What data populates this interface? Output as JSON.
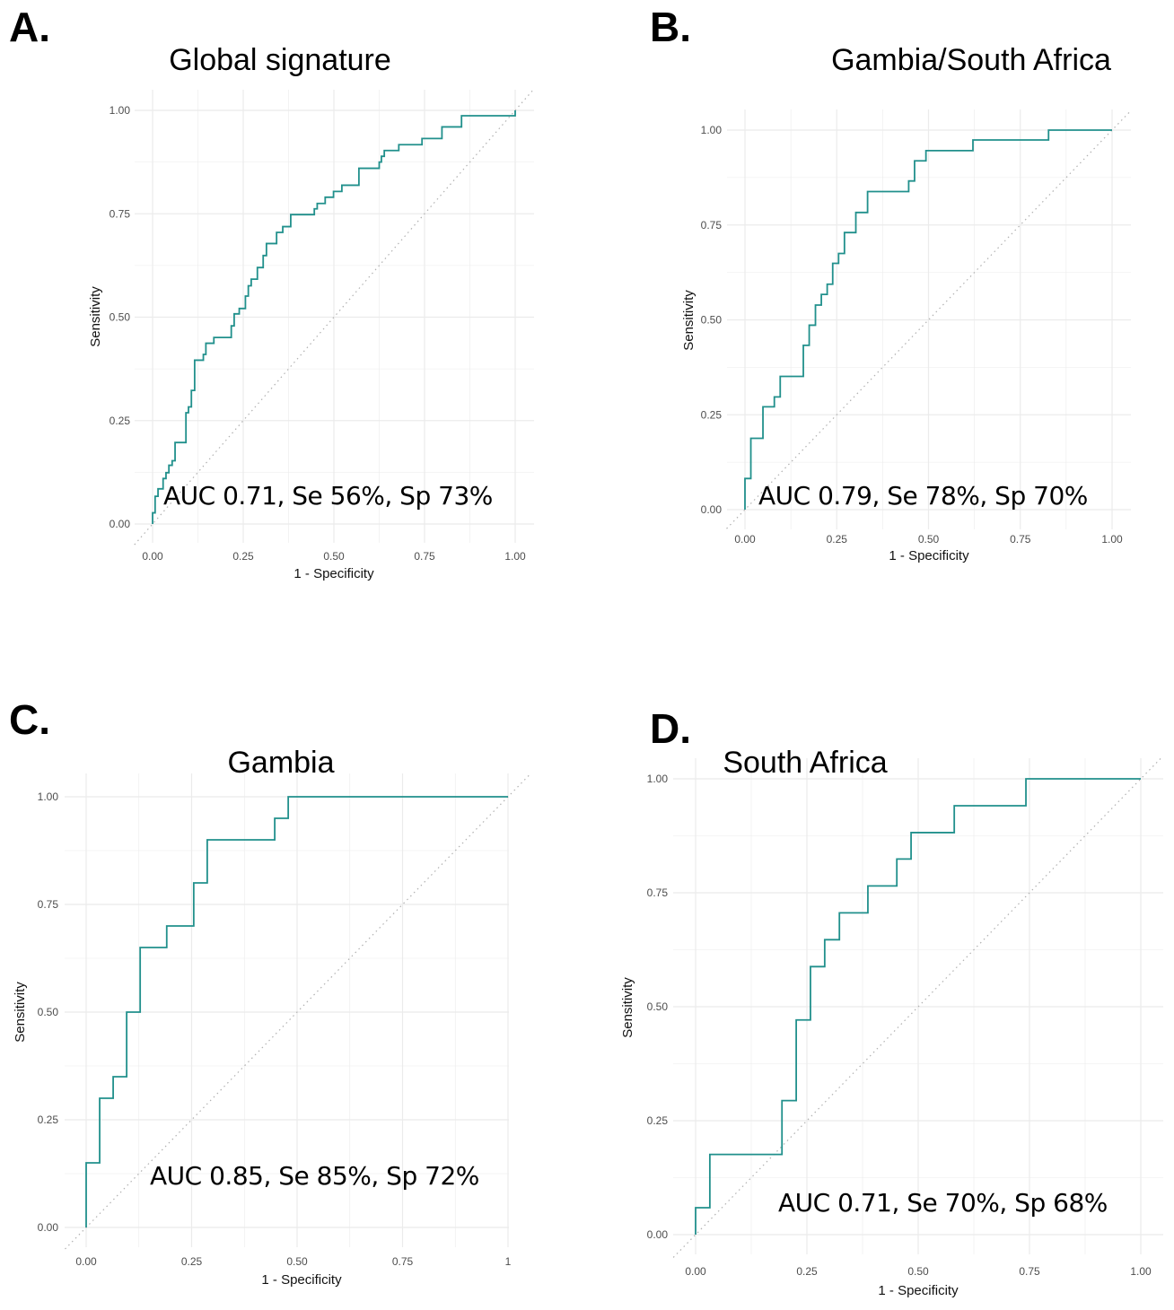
{
  "colors": {
    "curve": "#21908c",
    "grid": "#ebebeb",
    "diagonal": "#b0b0b0"
  },
  "chart_data": [
    {
      "panel": "A.",
      "type": "line",
      "title": "Global signature",
      "xlabel": "1 - Specificity",
      "ylabel": "Sensitivity",
      "xlim": [
        0,
        1
      ],
      "ylim": [
        0,
        1
      ],
      "xticks": [
        "0.00",
        "0.25",
        "0.50",
        "0.75",
        "1.00"
      ],
      "yticks": [
        "0.00",
        "0.25",
        "0.50",
        "0.75",
        "1.00"
      ],
      "grid": true,
      "annotation": "AUC 0.71, Se 56%, Sp 73%",
      "series": [
        {
          "name": "ROC",
          "step_points": [
            [
              0,
              0.027
            ],
            [
              0.007,
              0.067
            ],
            [
              0.015,
              0.085
            ],
            [
              0.029,
              0.11
            ],
            [
              0.037,
              0.124
            ],
            [
              0.045,
              0.142
            ],
            [
              0.054,
              0.153
            ],
            [
              0.062,
              0.197
            ],
            [
              0.092,
              0.269
            ],
            [
              0.099,
              0.283
            ],
            [
              0.107,
              0.323
            ],
            [
              0.116,
              0.396
            ],
            [
              0.14,
              0.41
            ],
            [
              0.147,
              0.437
            ],
            [
              0.169,
              0.451
            ],
            [
              0.217,
              0.479
            ],
            [
              0.225,
              0.508
            ],
            [
              0.239,
              0.521
            ],
            [
              0.256,
              0.551
            ],
            [
              0.264,
              0.576
            ],
            [
              0.272,
              0.592
            ],
            [
              0.289,
              0.62
            ],
            [
              0.305,
              0.649
            ],
            [
              0.314,
              0.678
            ],
            [
              0.342,
              0.705
            ],
            [
              0.359,
              0.719
            ],
            [
              0.381,
              0.748
            ],
            [
              0.446,
              0.762
            ],
            [
              0.454,
              0.775
            ],
            [
              0.476,
              0.79
            ],
            [
              0.499,
              0.804
            ],
            [
              0.522,
              0.819
            ],
            [
              0.569,
              0.86
            ],
            [
              0.625,
              0.875
            ],
            [
              0.631,
              0.889
            ],
            [
              0.639,
              0.903
            ],
            [
              0.679,
              0.917
            ],
            [
              0.743,
              0.932
            ],
            [
              0.798,
              0.96
            ],
            [
              0.852,
              0.987
            ],
            [
              1,
              1
            ]
          ]
        }
      ]
    },
    {
      "panel": "B.",
      "type": "line",
      "title": "Gambia/South Africa",
      "xlabel": "1 - Specificity",
      "ylabel": "Sensitivity",
      "xlim": [
        0,
        1
      ],
      "ylim": [
        0,
        1
      ],
      "xticks": [
        "0.00",
        "0.25",
        "0.50",
        "0.75",
        "1.00"
      ],
      "yticks": [
        "0.00",
        "0.25",
        "0.50",
        "0.75",
        "1.00"
      ],
      "grid": true,
      "annotation": "AUC 0.79, Se 78%, Sp 70%",
      "series": [
        {
          "name": "ROC",
          "step_points": [
            [
              0,
              0.082
            ],
            [
              0.016,
              0.188
            ],
            [
              0.049,
              0.271
            ],
            [
              0.08,
              0.297
            ],
            [
              0.096,
              0.351
            ],
            [
              0.159,
              0.433
            ],
            [
              0.175,
              0.486
            ],
            [
              0.192,
              0.539
            ],
            [
              0.208,
              0.567
            ],
            [
              0.224,
              0.594
            ],
            [
              0.239,
              0.649
            ],
            [
              0.255,
              0.675
            ],
            [
              0.271,
              0.73
            ],
            [
              0.302,
              0.783
            ],
            [
              0.334,
              0.838
            ],
            [
              0.446,
              0.866
            ],
            [
              0.462,
              0.919
            ],
            [
              0.493,
              0.946
            ],
            [
              0.621,
              0.974
            ],
            [
              0.827,
              1.0
            ],
            [
              1,
              1
            ]
          ]
        }
      ]
    },
    {
      "panel": "C.",
      "type": "line",
      "title": "Gambia",
      "xlabel": "1 - Specificity",
      "ylabel": "Sensitivity",
      "xlim": [
        0,
        1
      ],
      "ylim": [
        0,
        1
      ],
      "xticks": [
        "0.00",
        "0.25",
        "0.50",
        "0.75",
        "1"
      ],
      "yticks": [
        "0.00",
        "0.25",
        "0.50",
        "0.75",
        "1.00"
      ],
      "grid": true,
      "annotation": "AUC 0.85, Se 85%, Sp 72%",
      "series": [
        {
          "name": "ROC",
          "step_points": [
            [
              0,
              0.15
            ],
            [
              0.032,
              0.3
            ],
            [
              0.064,
              0.35
            ],
            [
              0.096,
              0.5
            ],
            [
              0.128,
              0.65
            ],
            [
              0.191,
              0.7
            ],
            [
              0.255,
              0.8
            ],
            [
              0.287,
              0.9
            ],
            [
              0.447,
              0.95
            ],
            [
              0.479,
              1
            ],
            [
              1,
              1
            ]
          ]
        }
      ]
    },
    {
      "panel": "D.",
      "type": "line",
      "title": "South Africa",
      "xlabel": "1 - Specificity",
      "ylabel": "Sensitivity",
      "xlim": [
        0,
        1
      ],
      "ylim": [
        0,
        1
      ],
      "xticks": [
        "0.00",
        "0.25",
        "0.50",
        "0.75",
        "1.00"
      ],
      "yticks": [
        "0.00",
        "0.25",
        "0.50",
        "0.75",
        "1.00"
      ],
      "grid": true,
      "annotation": "AUC 0.71, Se 70%, Sp 68%",
      "series": [
        {
          "name": "ROC",
          "step_points": [
            [
              0,
              0.059
            ],
            [
              0.032,
              0.176
            ],
            [
              0.194,
              0.294
            ],
            [
              0.226,
              0.471
            ],
            [
              0.258,
              0.588
            ],
            [
              0.29,
              0.647
            ],
            [
              0.323,
              0.706
            ],
            [
              0.387,
              0.765
            ],
            [
              0.452,
              0.824
            ],
            [
              0.484,
              0.882
            ],
            [
              0.581,
              0.941
            ],
            [
              0.742,
              1
            ],
            [
              1,
              1
            ]
          ]
        }
      ]
    }
  ]
}
